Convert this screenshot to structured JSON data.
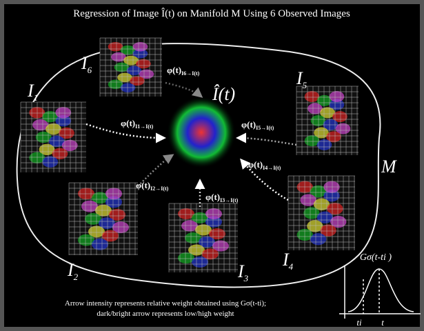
{
  "title": "Regression of Image Î(t) on Manifold M Using 6 Observed Images",
  "manifold_label": "M",
  "estimate_label": "Î(t)",
  "images": [
    {
      "label": "I",
      "index": "1"
    },
    {
      "label": "I",
      "index": "2"
    },
    {
      "label": "I",
      "index": "3"
    },
    {
      "label": "I",
      "index": "4"
    },
    {
      "label": "I",
      "index": "5"
    },
    {
      "label": "I",
      "index": "6"
    }
  ],
  "arrows": [
    {
      "main": "φ(t)",
      "sub": "I1→I(t)"
    },
    {
      "main": "φ(t)",
      "sub": "I2→I(t)"
    },
    {
      "main": "φ(t)",
      "sub": "I3→I(t)"
    },
    {
      "main": "φ(t)",
      "sub": "I4→I(t)"
    },
    {
      "main": "φ(t)",
      "sub": "I5→I(t)"
    },
    {
      "main": "φ(t)",
      "sub": "I6→I(t)"
    }
  ],
  "kernel": {
    "label": "Gσ(t-ti )",
    "ti": "ti",
    "t": "t"
  },
  "caption": [
    "Arrow intensity represents relative weight obtained using Gσ(t-ti);",
    "dark/bright arrow represents low/high weight"
  ]
}
